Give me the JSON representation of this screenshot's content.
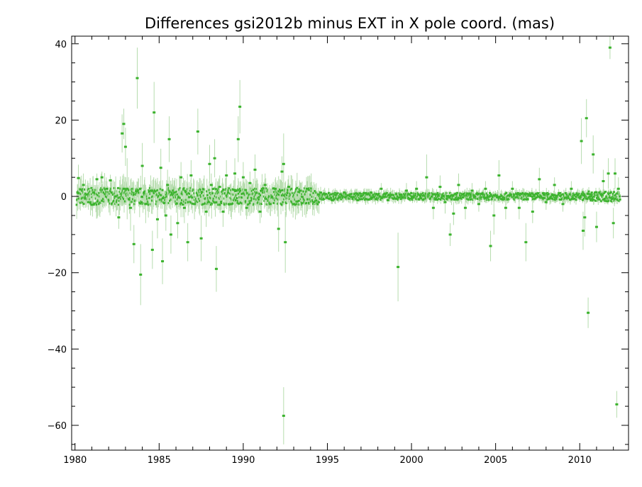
{
  "chart_data": {
    "type": "scatter",
    "title": "Differences gsi2012b minus EXT in X pole coord. (mas)",
    "xlabel": "",
    "ylabel": "",
    "xlim": [
      1979.8,
      2012.9
    ],
    "ylim": [
      -66.5,
      42
    ],
    "x_ticks": [
      1980,
      1985,
      1990,
      1995,
      2000,
      2005,
      2010
    ],
    "x_tick_labels": [
      "1980",
      "1985",
      "1990",
      "1995",
      "2000",
      "2005",
      "2010"
    ],
    "x_minor_step": 1,
    "y_ticks": [
      40,
      20,
      0,
      -20,
      -40,
      -60
    ],
    "y_tick_labels": [
      "40",
      "20",
      "0",
      "−20",
      "−40",
      "−60"
    ],
    "y_minor_step": 5,
    "grid": false,
    "legend": "none",
    "colors": {
      "points": "#3cb32e",
      "error_bars": "#b6dcae",
      "axes": "#000000"
    },
    "series": [
      {
        "points": [
          {
            "x": 1980.2,
            "y": 4.8,
            "err": 3.5
          },
          {
            "x": 1980.5,
            "y": 3.0,
            "err": 3.0
          },
          {
            "x": 1980.7,
            "y": 0.5,
            "err": 2.5
          },
          {
            "x": 1980.8,
            "y": -1.5,
            "err": 2.0
          },
          {
            "x": 1981.0,
            "y": -2.2,
            "err": 1.5
          },
          {
            "x": 1981.1,
            "y": 1.0,
            "err": 2.0
          },
          {
            "x": 1981.3,
            "y": 4.5,
            "err": 1.5
          },
          {
            "x": 1981.6,
            "y": 5.0,
            "err": 1.5
          },
          {
            "x": 1981.9,
            "y": 2.0,
            "err": 2.0
          },
          {
            "x": 1982.1,
            "y": 4.2,
            "err": 1.5
          },
          {
            "x": 1982.4,
            "y": 0.0,
            "err": 2.0
          },
          {
            "x": 1982.6,
            "y": -5.5,
            "err": 3.0
          },
          {
            "x": 1982.8,
            "y": 16.5,
            "err": 5.0
          },
          {
            "x": 1982.9,
            "y": 19.0,
            "err": 4.0
          },
          {
            "x": 1983.0,
            "y": 13.0,
            "err": 5.0
          },
          {
            "x": 1983.1,
            "y": 2.0,
            "err": 8.0
          },
          {
            "x": 1983.3,
            "y": -3.0,
            "err": 6.0
          },
          {
            "x": 1983.5,
            "y": -12.5,
            "err": 5.0
          },
          {
            "x": 1983.7,
            "y": 31.0,
            "err": 8.0
          },
          {
            "x": 1983.9,
            "y": -20.5,
            "err": 8.0
          },
          {
            "x": 1984.0,
            "y": 8.0,
            "err": 6.0
          },
          {
            "x": 1984.2,
            "y": -2.0,
            "err": 5.0
          },
          {
            "x": 1984.5,
            "y": 1.5,
            "err": 4.0
          },
          {
            "x": 1984.6,
            "y": -14.0,
            "err": 5.0
          },
          {
            "x": 1984.7,
            "y": 22.0,
            "err": 8.0
          },
          {
            "x": 1984.9,
            "y": -6.0,
            "err": 5.0
          },
          {
            "x": 1985.1,
            "y": 7.5,
            "err": 5.0
          },
          {
            "x": 1985.2,
            "y": -17.0,
            "err": 6.0
          },
          {
            "x": 1985.4,
            "y": -5.0,
            "err": 4.0
          },
          {
            "x": 1985.5,
            "y": 3.0,
            "err": 4.0
          },
          {
            "x": 1985.6,
            "y": 15.0,
            "err": 6.0
          },
          {
            "x": 1985.7,
            "y": -10.0,
            "err": 5.0
          },
          {
            "x": 1985.9,
            "y": 1.0,
            "err": 3.0
          },
          {
            "x": 1986.1,
            "y": -7.0,
            "err": 4.0
          },
          {
            "x": 1986.3,
            "y": 5.0,
            "err": 4.0
          },
          {
            "x": 1986.5,
            "y": -3.0,
            "err": 4.0
          },
          {
            "x": 1986.7,
            "y": -12.0,
            "err": 5.0
          },
          {
            "x": 1986.9,
            "y": 5.5,
            "err": 4.0
          },
          {
            "x": 1987.1,
            "y": -2.0,
            "err": 4.0
          },
          {
            "x": 1987.3,
            "y": 17.0,
            "err": 6.0
          },
          {
            "x": 1987.5,
            "y": -11.0,
            "err": 6.0
          },
          {
            "x": 1987.8,
            "y": -4.0,
            "err": 4.0
          },
          {
            "x": 1988.0,
            "y": 8.5,
            "err": 5.0
          },
          {
            "x": 1988.1,
            "y": 3.0,
            "err": 3.0
          },
          {
            "x": 1988.3,
            "y": 10.0,
            "err": 5.0
          },
          {
            "x": 1988.4,
            "y": -19.0,
            "err": 6.0
          },
          {
            "x": 1988.6,
            "y": 2.5,
            "err": 3.0
          },
          {
            "x": 1988.8,
            "y": -4.0,
            "err": 4.0
          },
          {
            "x": 1989.0,
            "y": 5.5,
            "err": 4.0
          },
          {
            "x": 1989.3,
            "y": -2.0,
            "err": 4.0
          },
          {
            "x": 1989.5,
            "y": 6.0,
            "err": 4.0
          },
          {
            "x": 1989.7,
            "y": 15.0,
            "err": 6.0
          },
          {
            "x": 1989.8,
            "y": 23.5,
            "err": 7.0
          },
          {
            "x": 1990.0,
            "y": 5.0,
            "err": 4.0
          },
          {
            "x": 1990.2,
            "y": -3.0,
            "err": 3.0
          },
          {
            "x": 1990.4,
            "y": 3.5,
            "err": 3.0
          },
          {
            "x": 1990.7,
            "y": 7.0,
            "err": 4.0
          },
          {
            "x": 1991.0,
            "y": -4.0,
            "err": 3.0
          },
          {
            "x": 1991.3,
            "y": 3.0,
            "err": 3.0
          },
          {
            "x": 1991.6,
            "y": -2.0,
            "err": 3.0
          },
          {
            "x": 1991.9,
            "y": 2.0,
            "err": 2.5
          },
          {
            "x": 1992.1,
            "y": -8.5,
            "err": 6.0
          },
          {
            "x": 1992.3,
            "y": 6.5,
            "err": 4.0
          },
          {
            "x": 1992.4,
            "y": 8.5,
            "err": 8.0
          },
          {
            "x": 1992.4,
            "y": -57.5,
            "err": 7.5
          },
          {
            "x": 1992.5,
            "y": -12.0,
            "err": 8.0
          },
          {
            "x": 1992.7,
            "y": 2.5,
            "err": 3.0
          },
          {
            "x": 1993.0,
            "y": -2.0,
            "err": 2.0
          },
          {
            "x": 1993.4,
            "y": 1.5,
            "err": 2.0
          },
          {
            "x": 1993.8,
            "y": 2.0,
            "err": 2.0
          },
          {
            "x": 1994.2,
            "y": -1.5,
            "err": 2.0
          },
          {
            "x": 1994.6,
            "y": 1.0,
            "err": 1.5
          },
          {
            "x": 1995.3,
            "y": -1.0,
            "err": 1.0
          },
          {
            "x": 1996.0,
            "y": 1.0,
            "err": 1.0
          },
          {
            "x": 1996.8,
            "y": -1.0,
            "err": 1.0
          },
          {
            "x": 1997.6,
            "y": 1.0,
            "err": 1.0
          },
          {
            "x": 1998.2,
            "y": 2.0,
            "err": 1.5
          },
          {
            "x": 1998.6,
            "y": -1.0,
            "err": 1.0
          },
          {
            "x": 1999.2,
            "y": -18.5,
            "err": 9.0
          },
          {
            "x": 1999.7,
            "y": 1.5,
            "err": 2.0
          },
          {
            "x": 2000.3,
            "y": 2.0,
            "err": 2.0
          },
          {
            "x": 2000.9,
            "y": 5.0,
            "err": 6.0
          },
          {
            "x": 2001.3,
            "y": -3.0,
            "err": 3.0
          },
          {
            "x": 2001.7,
            "y": 2.5,
            "err": 3.0
          },
          {
            "x": 2002.0,
            "y": -1.5,
            "err": 3.0
          },
          {
            "x": 2002.3,
            "y": -10.0,
            "err": 3.0
          },
          {
            "x": 2002.5,
            "y": -4.5,
            "err": 3.0
          },
          {
            "x": 2002.8,
            "y": 3.0,
            "err": 3.0
          },
          {
            "x": 2003.2,
            "y": -3.0,
            "err": 3.0
          },
          {
            "x": 2003.6,
            "y": 1.5,
            "err": 2.0
          },
          {
            "x": 2004.0,
            "y": -2.0,
            "err": 2.0
          },
          {
            "x": 2004.4,
            "y": 2.0,
            "err": 2.0
          },
          {
            "x": 2004.7,
            "y": -13.0,
            "err": 4.0
          },
          {
            "x": 2004.9,
            "y": -5.0,
            "err": 5.0
          },
          {
            "x": 2005.2,
            "y": 5.5,
            "err": 4.0
          },
          {
            "x": 2005.6,
            "y": -3.0,
            "err": 3.0
          },
          {
            "x": 2006.0,
            "y": 2.0,
            "err": 2.0
          },
          {
            "x": 2006.4,
            "y": -3.0,
            "err": 3.0
          },
          {
            "x": 2006.8,
            "y": -12.0,
            "err": 5.0
          },
          {
            "x": 2007.2,
            "y": -4.0,
            "err": 3.0
          },
          {
            "x": 2007.6,
            "y": 4.5,
            "err": 3.0
          },
          {
            "x": 2008.0,
            "y": -1.5,
            "err": 2.0
          },
          {
            "x": 2008.5,
            "y": 3.0,
            "err": 2.0
          },
          {
            "x": 2009.0,
            "y": -2.0,
            "err": 2.0
          },
          {
            "x": 2009.5,
            "y": 2.0,
            "err": 2.0
          },
          {
            "x": 2010.1,
            "y": 14.5,
            "err": 6.0
          },
          {
            "x": 2010.2,
            "y": -9.0,
            "err": 5.0
          },
          {
            "x": 2010.3,
            "y": -5.5,
            "err": 5.0
          },
          {
            "x": 2010.4,
            "y": 20.5,
            "err": 5.0
          },
          {
            "x": 2010.5,
            "y": -30.5,
            "err": 4.0
          },
          {
            "x": 2010.8,
            "y": 11.0,
            "err": 5.0
          },
          {
            "x": 2011.0,
            "y": -8.0,
            "err": 4.0
          },
          {
            "x": 2011.4,
            "y": 4.0,
            "err": 3.0
          },
          {
            "x": 2011.7,
            "y": 6.0,
            "err": 4.0
          },
          {
            "x": 2011.8,
            "y": 39.0,
            "err": 3.0
          },
          {
            "x": 2012.0,
            "y": -7.0,
            "err": 4.0
          },
          {
            "x": 2012.1,
            "y": 6.0,
            "err": 4.0
          },
          {
            "x": 2012.2,
            "y": -54.5,
            "err": 3.5
          },
          {
            "x": 2012.3,
            "y": 2.0,
            "err": 3.0
          }
        ]
      }
    ]
  }
}
